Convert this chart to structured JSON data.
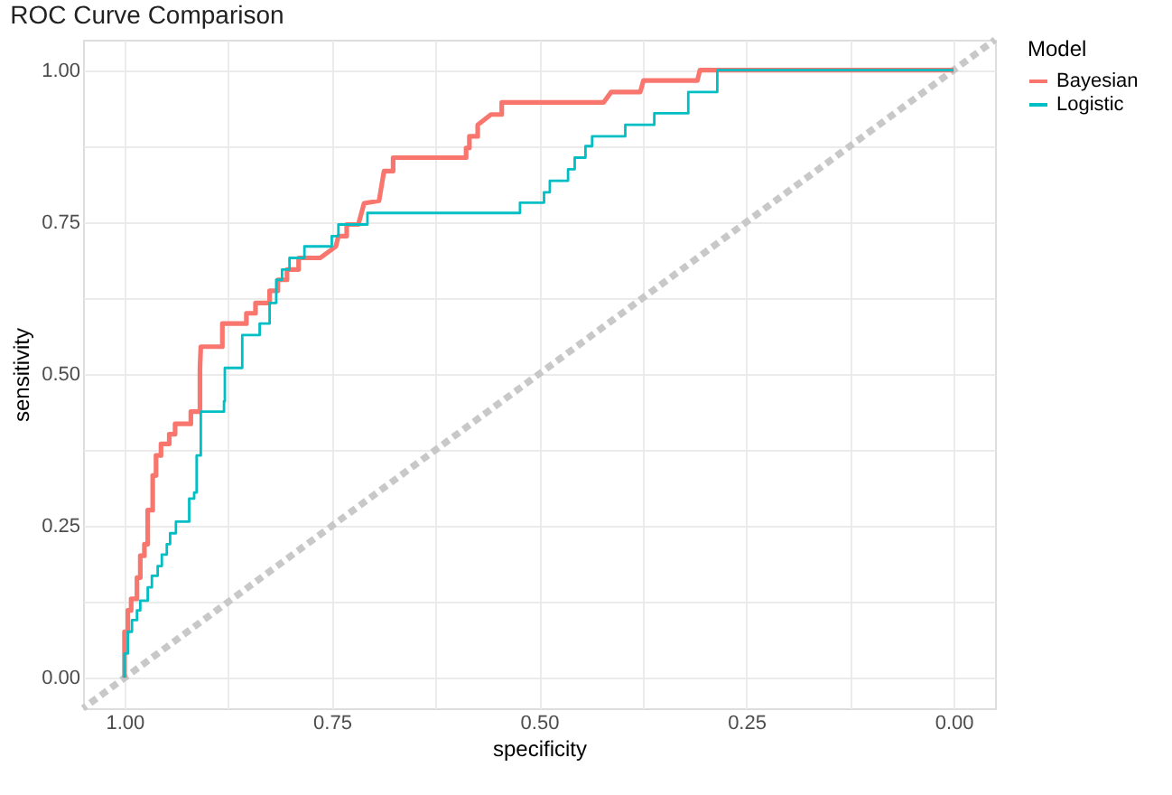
{
  "chart_data": {
    "type": "line",
    "title": "ROC Curve Comparison",
    "xlabel": "specificity",
    "ylabel": "sensitivity",
    "legend_title": "Model",
    "legend": "right",
    "grid": true,
    "marker": "none",
    "xlim": [
      1.05,
      -0.05
    ],
    "ylim": [
      -0.05,
      1.05
    ],
    "xticks": [
      {
        "value": 1,
        "label": "1.00"
      },
      {
        "value": 0.875,
        "label": null
      },
      {
        "value": 0.75,
        "label": "0.75"
      },
      {
        "value": 0.625,
        "label": null
      },
      {
        "value": 0.5,
        "label": "0.50"
      },
      {
        "value": 0.375,
        "label": null
      },
      {
        "value": 0.25,
        "label": "0.25"
      },
      {
        "value": 0.125,
        "label": null
      },
      {
        "value": 0,
        "label": "0.00"
      }
    ],
    "yticks": [
      {
        "value": 0,
        "label": "0.00"
      },
      {
        "value": 0.125,
        "label": null
      },
      {
        "value": 0.25,
        "label": "0.25"
      },
      {
        "value": 0.375,
        "label": null
      },
      {
        "value": 0.5,
        "label": "0.50"
      },
      {
        "value": 0.625,
        "label": null
      },
      {
        "value": 0.75,
        "label": "0.75"
      },
      {
        "value": 0.875,
        "label": null
      },
      {
        "value": 1,
        "label": "1.00"
      }
    ],
    "series": [
      {
        "line_style": "dashed",
        "color": "#c8c8c8",
        "x": [
          1.05,
          -0.05
        ],
        "values": [
          -0.05,
          1.05
        ]
      },
      {
        "line_style": "solid",
        "name": "Bayesian",
        "color": "#f8766d",
        "x": [
          1,
          1,
          0.996,
          0.996,
          0.992,
          0.992,
          0.985,
          0.985,
          0.981,
          0.981,
          0.976,
          0.976,
          0.972,
          0.972,
          0.966,
          0.966,
          0.962,
          0.962,
          0.956,
          0.956,
          0.946,
          0.946,
          0.939,
          0.939,
          0.92,
          0.92,
          0.909,
          0.909,
          0.908,
          0.882,
          0.882,
          0.853,
          0.853,
          0.842,
          0.842,
          0.825,
          0.825,
          0.815,
          0.815,
          0.804,
          0.804,
          0.79,
          0.79,
          0.764,
          0.745,
          0.742,
          0.732,
          0.732,
          0.718,
          0.711,
          0.693,
          0.687,
          0.676,
          0.676,
          0.588,
          0.588,
          0.584,
          0.584,
          0.574,
          0.574,
          0.558,
          0.545,
          0.545,
          0.422,
          0.413,
          0.378,
          0.374,
          0.309,
          0.306,
          0
        ],
        "values": [
          0,
          0.076,
          0.076,
          0.111,
          0.111,
          0.13,
          0.13,
          0.165,
          0.165,
          0.201,
          0.201,
          0.22,
          0.22,
          0.276,
          0.276,
          0.333,
          0.333,
          0.366,
          0.366,
          0.385,
          0.385,
          0.401,
          0.401,
          0.418,
          0.418,
          0.438,
          0.438,
          0.51,
          0.545,
          0.545,
          0.583,
          0.583,
          0.6,
          0.6,
          0.617,
          0.617,
          0.637,
          0.637,
          0.655,
          0.655,
          0.672,
          0.672,
          0.691,
          0.691,
          0.71,
          0.727,
          0.727,
          0.746,
          0.746,
          0.781,
          0.785,
          0.834,
          0.834,
          0.856,
          0.856,
          0.872,
          0.872,
          0.891,
          0.891,
          0.91,
          0.927,
          0.927,
          0.947,
          0.947,
          0.964,
          0.964,
          0.983,
          0.983,
          1,
          1
        ]
      },
      {
        "line_style": "solid",
        "name": "Logistic",
        "color": "#00bfc4",
        "x": [
          1,
          1,
          0.996,
          0.996,
          0.991,
          0.991,
          0.985,
          0.985,
          0.981,
          0.981,
          0.972,
          0.972,
          0.967,
          0.967,
          0.96,
          0.96,
          0.955,
          0.955,
          0.949,
          0.949,
          0.945,
          0.945,
          0.938,
          0.938,
          0.922,
          0.922,
          0.916,
          0.916,
          0.913,
          0.913,
          0.908,
          0.908,
          0.88,
          0.88,
          0.879,
          0.879,
          0.858,
          0.858,
          0.837,
          0.837,
          0.825,
          0.825,
          0.817,
          0.817,
          0.81,
          0.81,
          0.801,
          0.801,
          0.783,
          0.783,
          0.75,
          0.75,
          0.742,
          0.742,
          0.707,
          0.707,
          0.523,
          0.523,
          0.494,
          0.494,
          0.487,
          0.487,
          0.465,
          0.465,
          0.457,
          0.457,
          0.444,
          0.444,
          0.436,
          0.436,
          0.396,
          0.396,
          0.361,
          0.361,
          0.32,
          0.32,
          0.285,
          0.285,
          0
        ],
        "values": [
          0,
          0.04,
          0.04,
          0.076,
          0.076,
          0.095,
          0.095,
          0.111,
          0.111,
          0.127,
          0.127,
          0.149,
          0.149,
          0.168,
          0.168,
          0.184,
          0.184,
          0.203,
          0.203,
          0.22,
          0.22,
          0.238,
          0.238,
          0.257,
          0.257,
          0.295,
          0.295,
          0.305,
          0.305,
          0.366,
          0.366,
          0.438,
          0.438,
          0.455,
          0.455,
          0.51,
          0.51,
          0.564,
          0.564,
          0.583,
          0.583,
          0.617,
          0.617,
          0.655,
          0.655,
          0.672,
          0.672,
          0.691,
          0.691,
          0.71,
          0.71,
          0.727,
          0.727,
          0.746,
          0.746,
          0.765,
          0.765,
          0.782,
          0.782,
          0.799,
          0.799,
          0.818,
          0.818,
          0.837,
          0.837,
          0.856,
          0.856,
          0.875,
          0.875,
          0.891,
          0.891,
          0.91,
          0.91,
          0.929,
          0.929,
          0.964,
          0.964,
          1,
          1
        ]
      }
    ]
  }
}
